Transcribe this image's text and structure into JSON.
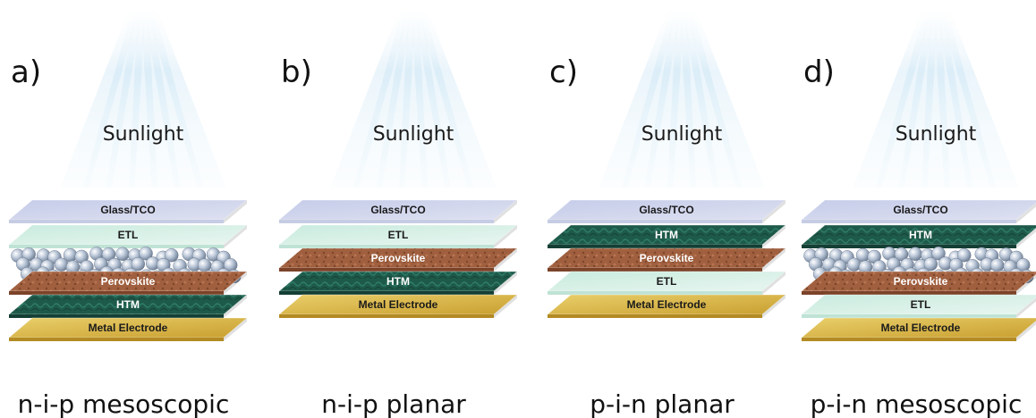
{
  "panels": [
    {
      "letter": "a)",
      "sunlight": "Sunlight",
      "caption": "n-i-p mesoscopic",
      "layers": [
        {
          "type": "glass",
          "label": "Glass/TCO"
        },
        {
          "type": "etl",
          "label": "ETL"
        },
        {
          "type": "meso",
          "label": ""
        },
        {
          "type": "perovskite",
          "label": "Perovskite"
        },
        {
          "type": "htm",
          "label": "HTM"
        },
        {
          "type": "metal",
          "label": "Metal Electrode"
        }
      ]
    },
    {
      "letter": "b)",
      "sunlight": "Sunlight",
      "caption": "n-i-p planar",
      "layers": [
        {
          "type": "glass",
          "label": "Glass/TCO"
        },
        {
          "type": "etl",
          "label": "ETL"
        },
        {
          "type": "perovskite",
          "label": "Perovskite"
        },
        {
          "type": "htm",
          "label": "HTM"
        },
        {
          "type": "metal",
          "label": "Metal Electrode"
        }
      ]
    },
    {
      "letter": "c)",
      "sunlight": "Sunlight",
      "caption": "p-i-n planar",
      "layers": [
        {
          "type": "glass",
          "label": "Glass/TCO"
        },
        {
          "type": "htm",
          "label": "HTM"
        },
        {
          "type": "perovskite",
          "label": "Perovskite"
        },
        {
          "type": "etl",
          "label": "ETL"
        },
        {
          "type": "metal",
          "label": "Metal Electrode"
        }
      ]
    },
    {
      "letter": "d)",
      "sunlight": "Sunlight",
      "caption": "p-i-n mesoscopic",
      "layers": [
        {
          "type": "glass",
          "label": "Glass/TCO"
        },
        {
          "type": "htm",
          "label": "HTM"
        },
        {
          "type": "meso",
          "label": ""
        },
        {
          "type": "perovskite",
          "label": "Perovskite"
        },
        {
          "type": "etl",
          "label": "ETL"
        },
        {
          "type": "metal",
          "label": "Metal Electrode"
        }
      ]
    }
  ],
  "colors": {
    "glass": "#c9d0e8",
    "etl": "#d6efe6",
    "perovskite": "#9a5a3c",
    "htm": "#1f5a4c",
    "metal": "#d9b84a",
    "meso_ball": "#a9b6c8",
    "sun_ray": "#9fcbe8"
  }
}
